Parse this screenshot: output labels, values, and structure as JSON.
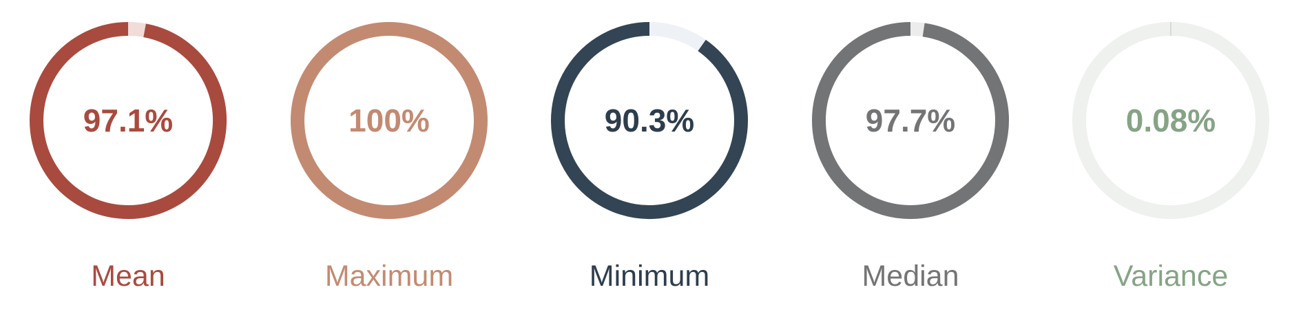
{
  "chart_data": {
    "type": "gauge",
    "max": 100,
    "gauges": [
      {
        "label": "Mean",
        "value": 97.1,
        "display": "97.1%",
        "color": "#a94a3f",
        "track": "#f1dcda",
        "text_color": "#a94a3f"
      },
      {
        "label": "Maximum",
        "value": 100,
        "display": "100%",
        "color": "#c38a72",
        "track": "#f3e5df",
        "text_color": "#c38a72"
      },
      {
        "label": "Minimum",
        "value": 90.3,
        "display": "90.3%",
        "color": "#334454",
        "track": "#eef1f5",
        "text_color": "#2e3d4c"
      },
      {
        "label": "Median",
        "value": 97.7,
        "display": "97.7%",
        "color": "#737476",
        "track": "#ececec",
        "text_color": "#737476"
      },
      {
        "label": "Variance",
        "value": 0.08,
        "display": "0.08%",
        "color": "#cfd3cf",
        "track": "#eff1ee",
        "text_color": "#86a386"
      }
    ]
  }
}
